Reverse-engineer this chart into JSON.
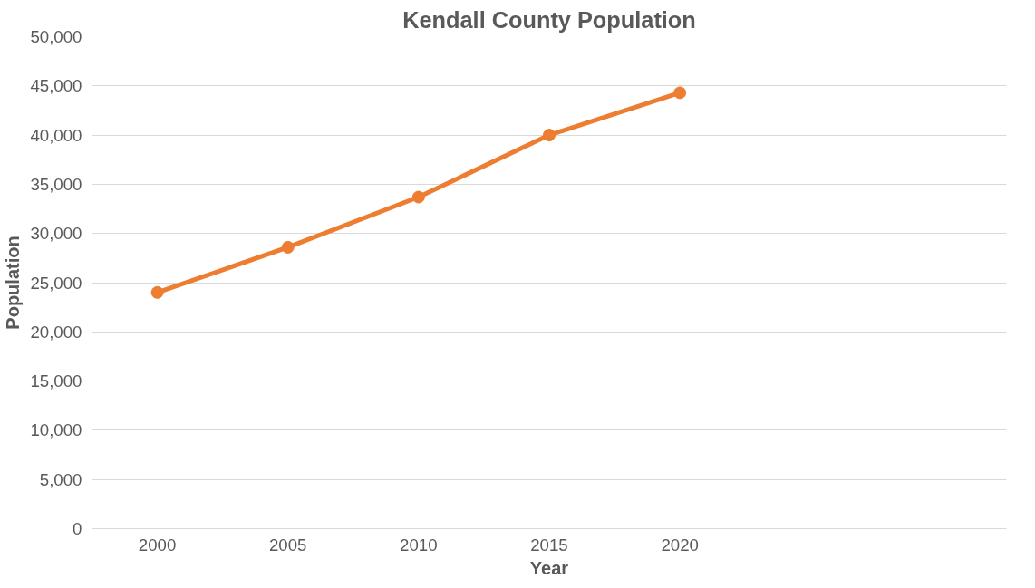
{
  "chart_data": {
    "type": "line",
    "title": "Kendall County Population",
    "xlabel": "Year",
    "ylabel": "Population",
    "categories": [
      "2000",
      "2005",
      "2010",
      "2015",
      "2020",
      null,
      null
    ],
    "series": [
      {
        "color": "#ed7d31",
        "values": [
          24000,
          28600,
          33700,
          40000,
          44300,
          null,
          null
        ]
      }
    ],
    "ylim": [
      0,
      50000
    ],
    "yticks": [
      0,
      {
        "value": 5000,
        "label": "5,000"
      },
      {
        "value": 10000,
        "label": "10,000"
      },
      {
        "value": 15000,
        "label": "15,000"
      },
      {
        "value": 20000,
        "label": "20,000"
      },
      {
        "value": 25000,
        "label": "25,000"
      },
      {
        "value": 30000,
        "label": "30,000"
      },
      {
        "value": 35000,
        "label": "35,000"
      },
      {
        "value": 40000,
        "label": "40,000"
      },
      {
        "value": 45000,
        "label": "45,000"
      },
      {
        "value": 50000,
        "label": "50,000"
      }
    ],
    "grid": "y",
    "marker": "circle",
    "line_style": "solid"
  }
}
